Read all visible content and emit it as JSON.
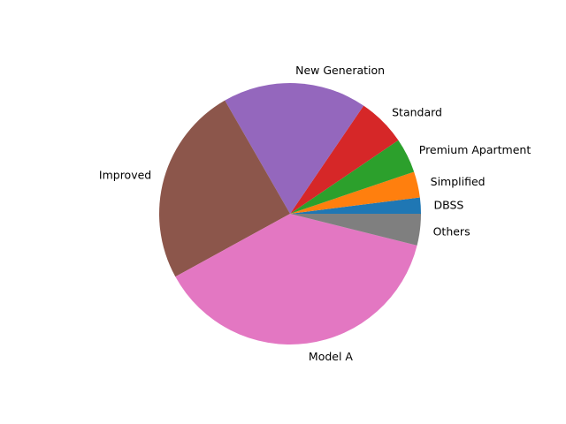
{
  "chart_data": {
    "type": "pie",
    "start_angle_deg": 0,
    "direction": "counterclockwise",
    "slices": [
      {
        "label": "DBSS",
        "value": 2.0,
        "color": "#1f77b4"
      },
      {
        "label": "Simplified",
        "value": 3.2,
        "color": "#ff7f0e"
      },
      {
        "label": "Premium Apartment",
        "value": 4.3,
        "color": "#2ca02c"
      },
      {
        "label": "Standard",
        "value": 6.0,
        "color": "#d62728"
      },
      {
        "label": "New Generation",
        "value": 17.8,
        "color": "#9467bd"
      },
      {
        "label": "Improved",
        "value": 24.7,
        "color": "#8c564b"
      },
      {
        "label": "Model A",
        "value": 38.1,
        "color": "#e377c2"
      },
      {
        "label": "Others",
        "value": 3.9,
        "color": "#7f7f7f"
      }
    ]
  }
}
